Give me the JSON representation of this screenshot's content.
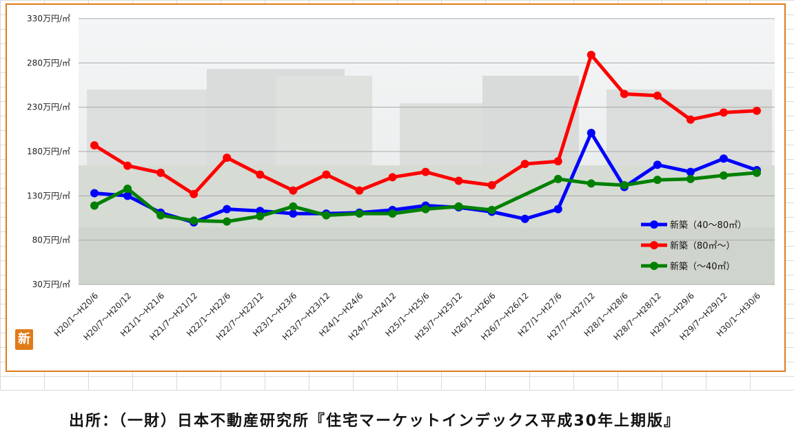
{
  "chart_data": {
    "type": "line",
    "title": "",
    "xlabel": "",
    "ylabel": "",
    "ylim": [
      30,
      330
    ],
    "yticks": [
      {
        "value": 30,
        "label": "30万円/㎡"
      },
      {
        "value": 80,
        "label": "80万円/㎡"
      },
      {
        "value": 130,
        "label": "130万円/㎡"
      },
      {
        "value": 180,
        "label": "180万円/㎡"
      },
      {
        "value": 230,
        "label": "230万円/㎡"
      },
      {
        "value": 280,
        "label": "280万円/㎡"
      },
      {
        "value": 330,
        "label": "330万円/㎡"
      }
    ],
    "grid": true,
    "legend_position": "bottom-right",
    "categories": [
      "H20/1～H20/6",
      "H20/7～H20/12",
      "H21/1～H21/6",
      "H21/7～H21/12",
      "H22/1～H22/6",
      "H22/7～H22/12",
      "H23/1～H23/6",
      "H23/7～H23/12",
      "H24/1～H24/6",
      "H24/7～H24/12",
      "H25/1～H25/6",
      "H25/7～H25/12",
      "H26/1～H26/6",
      "H26/7～H26/12",
      "H27/1～H27/6",
      "H27/7～H27/12",
      "H28/1～H28/6",
      "H28/7～H28/12",
      "H29/1～H29/6",
      "H29/7～H29/12",
      "H30/1～H30/6"
    ],
    "series": [
      {
        "name": "新築（40～80㎡）",
        "color": "#0000ff",
        "values": [
          133,
          130,
          111,
          100,
          115,
          113,
          110,
          110,
          111,
          114,
          119,
          117,
          112,
          104,
          115,
          201,
          140,
          165,
          157,
          172,
          159
        ]
      },
      {
        "name": "新築（80㎡～）",
        "color": "#ff0000",
        "values": [
          187,
          164,
          156,
          132,
          173,
          154,
          136,
          154,
          136,
          151,
          157,
          147,
          142,
          166,
          169,
          289,
          245,
          243,
          216,
          224,
          226
        ]
      },
      {
        "name": "新築（～40㎡）",
        "color": "#008000",
        "values": [
          119,
          138,
          108,
          102,
          101,
          107,
          118,
          108,
          110,
          110,
          115,
          118,
          114,
          null,
          149,
          144,
          142,
          148,
          149,
          153,
          156
        ]
      }
    ]
  },
  "source_note": "出所：（一財）日本不動産研究所『住宅マーケットインデックス平成30年上期版』",
  "logo_text": "新"
}
